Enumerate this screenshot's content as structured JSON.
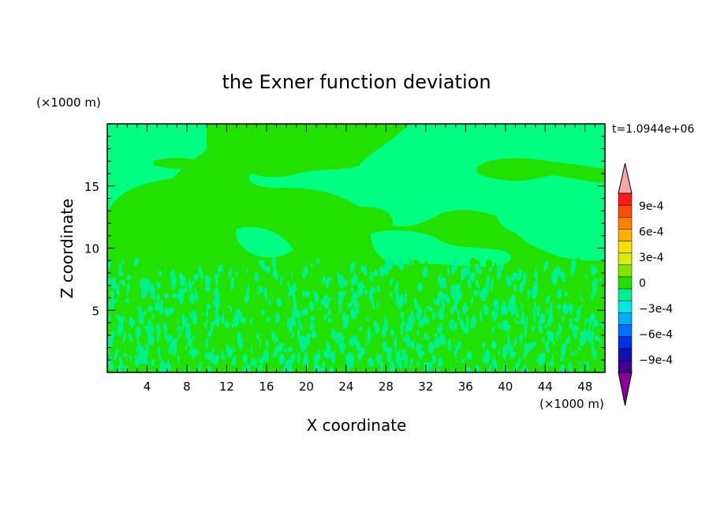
{
  "chart_data": {
    "type": "heatmap",
    "title": "the Exner function deviation",
    "xlabel": "X coordinate",
    "ylabel": "Z coordinate",
    "x_unit": "(×1000 m)",
    "y_unit": "(×1000 m)",
    "time_label": "t=1.0944e+06",
    "xlim": [
      0,
      50
    ],
    "ylim": [
      0,
      20
    ],
    "x_ticks": [
      4,
      8,
      12,
      16,
      20,
      24,
      28,
      32,
      36,
      40,
      44,
      48
    ],
    "y_ticks": [
      5,
      10,
      15
    ],
    "colorbar": {
      "labels": [
        "9e-4",
        "6e-4",
        "3e-4",
        "0",
        "−3e-4",
        "−6e-4",
        "−9e-4"
      ],
      "label_values": [
        0.0009,
        0.0006,
        0.0003,
        0,
        -0.0003,
        -0.0006,
        -0.0009
      ],
      "levels": [
        0.00105,
        0.0009,
        0.00075,
        0.0006,
        0.00045,
        0.0003,
        0.00015,
        0,
        -0.00015,
        -0.0003,
        -0.00045,
        -0.0006,
        -0.00075,
        -0.0009,
        -0.00105
      ],
      "colors": [
        "#ff1a1a",
        "#ff4d00",
        "#ff8000",
        "#ffb000",
        "#ffe000",
        "#d6ee00",
        "#80e600",
        "#22e000",
        "#00f090",
        "#00e8e8",
        "#00b0ff",
        "#0070ff",
        "#0030e8",
        "#1010b0",
        "#400090"
      ],
      "over_color": "#f4a6a6",
      "under_color": "#8a009a"
    },
    "fill_colors": {
      "upper_background": "#00ff80",
      "lower_background": "#00f090",
      "patches": "#22e000"
    }
  }
}
